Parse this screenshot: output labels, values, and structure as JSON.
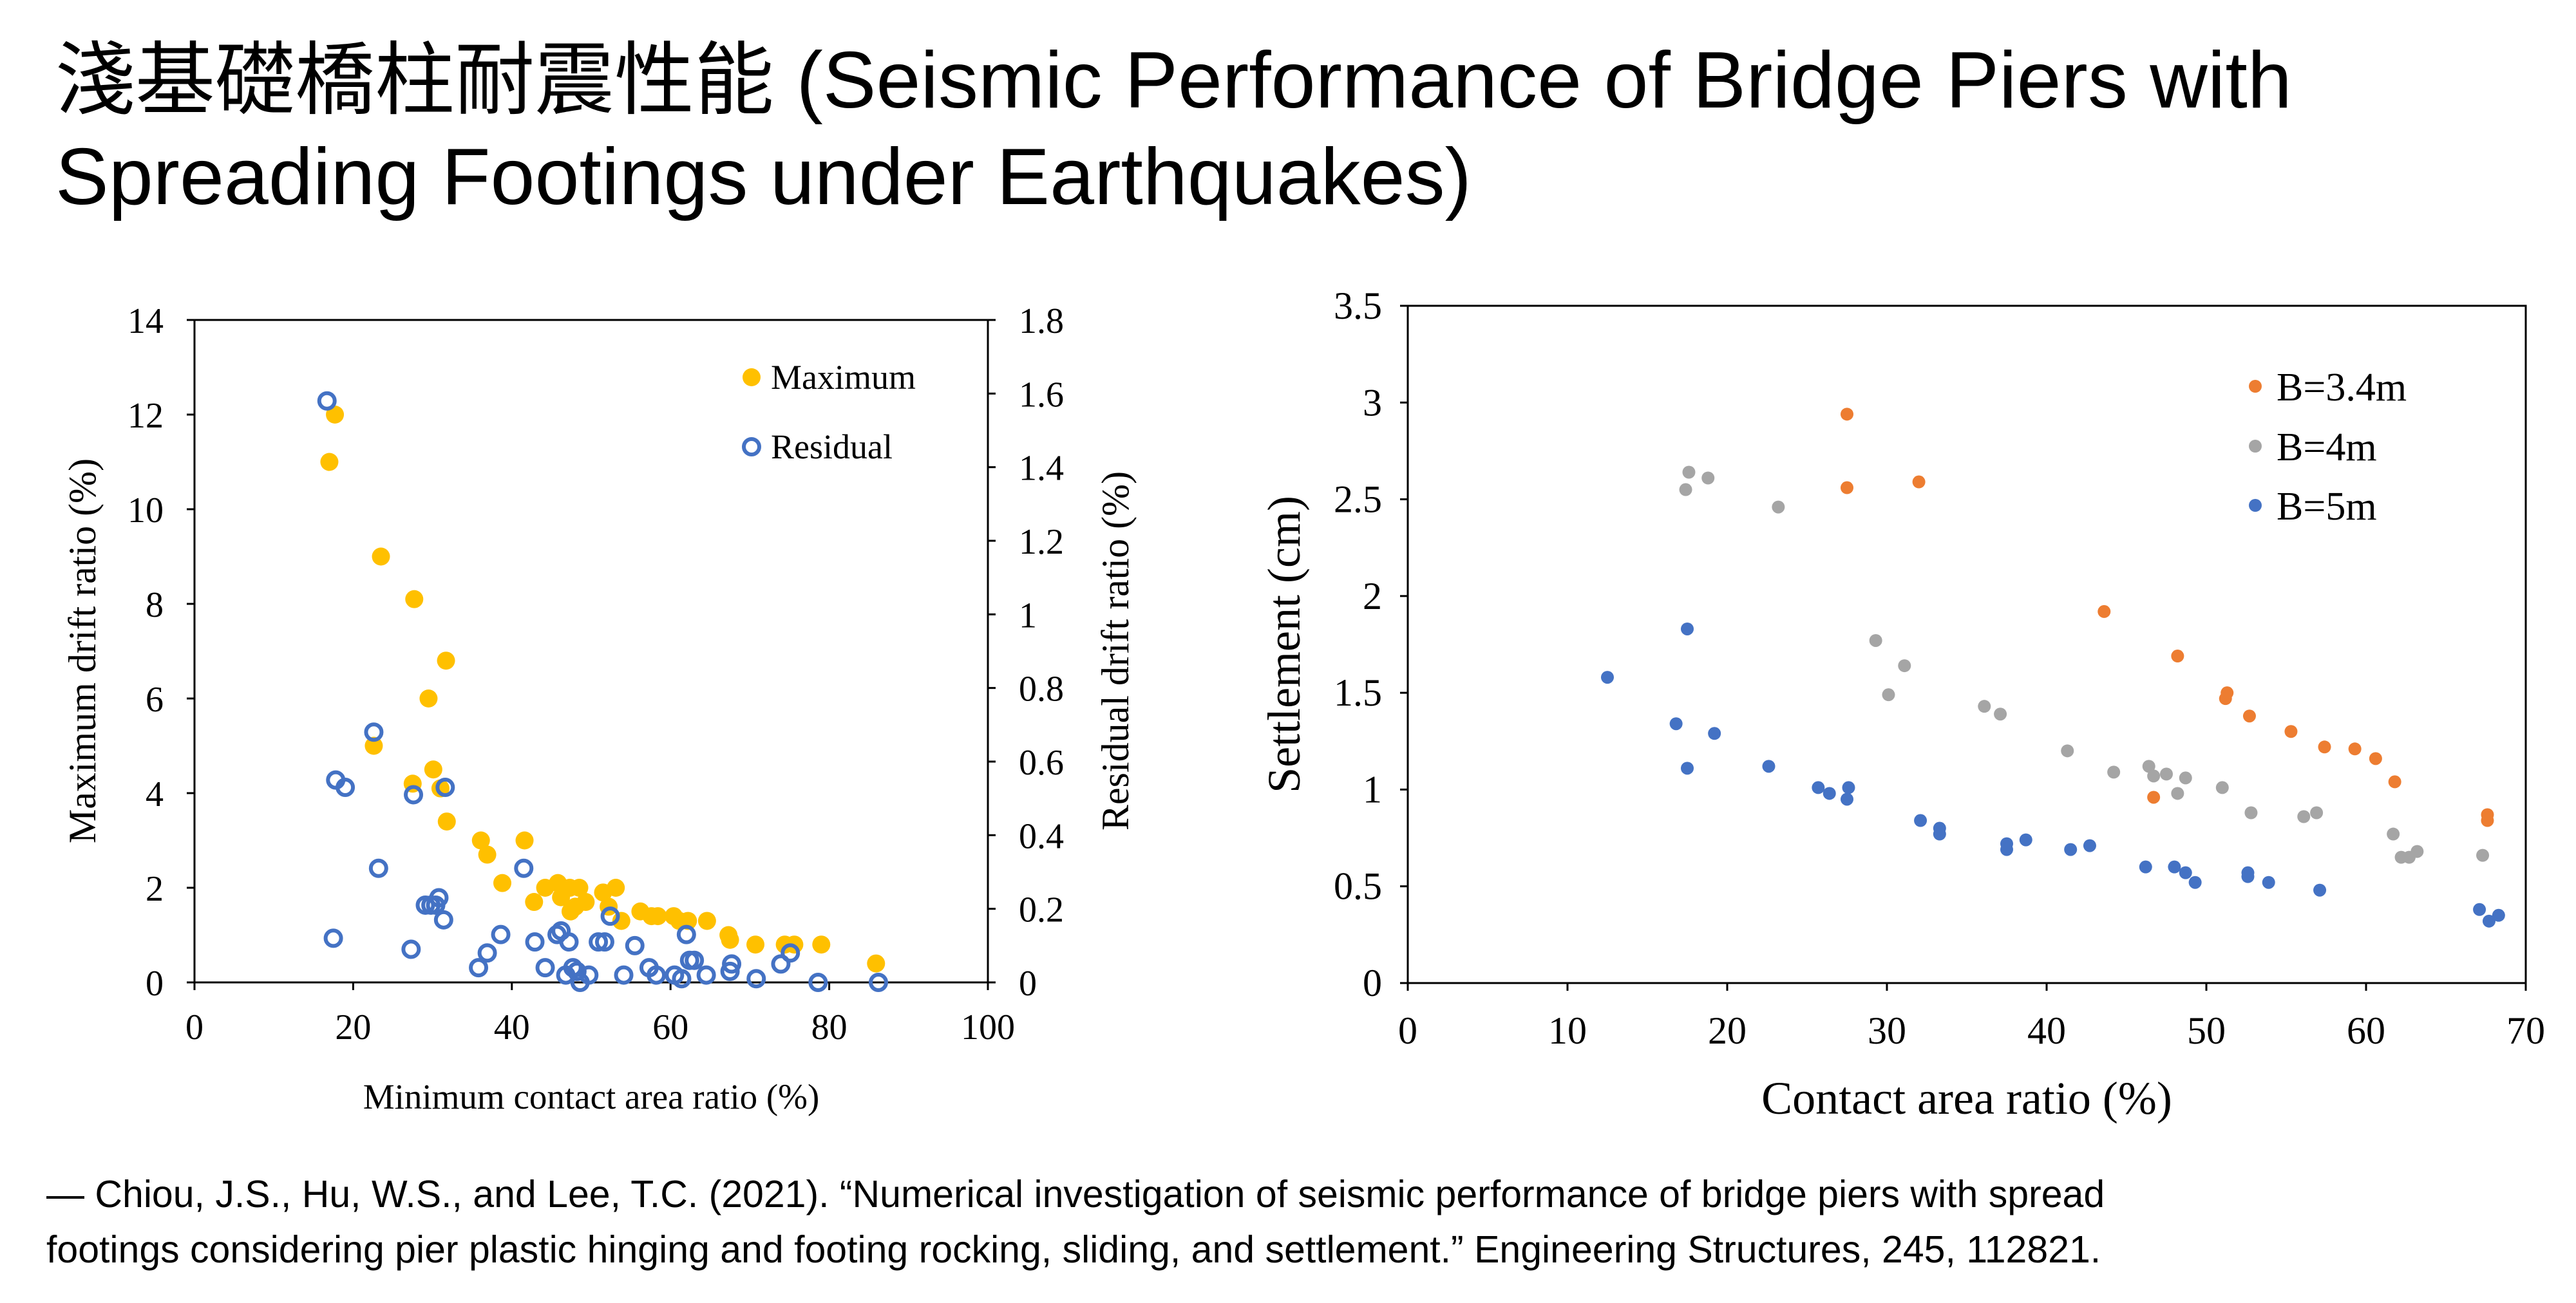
{
  "title": {
    "line1": "淺基礎橋柱耐震性能 (Seismic Performance of Bridge Piers with",
    "line2": "Spreading Footings under Earthquakes)"
  },
  "citation": {
    "line1": "— Chiou, J.S., Hu, W.S., and Lee, T.C. (2021). “Numerical investigation of seismic performance of bridge piers with spread",
    "line2": "footings considering pier plastic hinging and footing rocking, sliding, and settlement.” Engineering Structures, 245, 112821."
  },
  "colors": {
    "maximum": "#FFC000",
    "residual": "#4472C4",
    "b34": "#ED7D31",
    "b4": "#A5A5A5",
    "b5": "#4472C4"
  },
  "chart_data": [
    {
      "type": "scatter",
      "xlabel": "Minimum contact area ratio (%)",
      "ylabel": "Maximum drift ratio (%)",
      "y2label": "Residual drift ratio (%)",
      "xlim": [
        0,
        100
      ],
      "ylim": [
        0,
        14
      ],
      "y2lim": [
        0,
        1.8
      ],
      "xticks": [
        "0",
        "20",
        "40",
        "60",
        "80",
        "100"
      ],
      "yticks": [
        "0",
        "2",
        "4",
        "6",
        "8",
        "10",
        "12",
        "14"
      ],
      "y2ticks": [
        "0",
        "0.2",
        "0.4",
        "0.6",
        "0.8",
        "1",
        "1.2",
        "1.4",
        "1.6",
        "1.8"
      ],
      "legend_position": "top-right",
      "series": [
        {
          "name": "Maximum",
          "axis": "left",
          "marker": "filled-circle",
          "points": [
            [
              17.0,
              11.0
            ],
            [
              17.7,
              12.0
            ],
            [
              22.6,
              5.0
            ],
            [
              23.5,
              9.0
            ],
            [
              27.5,
              4.2
            ],
            [
              27.7,
              8.1
            ],
            [
              29.5,
              6.0
            ],
            [
              30.1,
              4.5
            ],
            [
              31.0,
              4.1
            ],
            [
              31.7,
              6.8
            ],
            [
              31.8,
              3.4
            ],
            [
              36.1,
              3.0
            ],
            [
              36.9,
              2.7
            ],
            [
              38.8,
              2.1
            ],
            [
              41.6,
              3.0
            ],
            [
              42.8,
              1.7
            ],
            [
              44.2,
              2.0
            ],
            [
              45.8,
              2.1
            ],
            [
              46.2,
              1.8
            ],
            [
              47.3,
              2.0
            ],
            [
              47.4,
              1.5
            ],
            [
              48.0,
              1.6
            ],
            [
              48.5,
              2.0
            ],
            [
              49.3,
              1.7
            ],
            [
              51.5,
              1.9
            ],
            [
              52.2,
              1.6
            ],
            [
              53.1,
              2.0
            ],
            [
              53.8,
              1.3
            ],
            [
              56.2,
              1.5
            ],
            [
              57.6,
              1.4
            ],
            [
              58.4,
              1.4
            ],
            [
              60.4,
              1.4
            ],
            [
              61.1,
              1.3
            ],
            [
              62.2,
              1.3
            ],
            [
              64.6,
              1.3
            ],
            [
              67.3,
              1.0
            ],
            [
              67.5,
              0.9
            ],
            [
              70.7,
              0.8
            ],
            [
              74.4,
              0.8
            ],
            [
              75.6,
              0.8
            ],
            [
              79.0,
              0.8
            ],
            [
              85.9,
              0.4
            ]
          ]
        },
        {
          "name": "Residual",
          "axis": "right",
          "marker": "open-circle",
          "points": [
            [
              16.7,
              1.58
            ],
            [
              17.5,
              0.12
            ],
            [
              17.8,
              0.55
            ],
            [
              19.0,
              0.53
            ],
            [
              22.6,
              0.68
            ],
            [
              23.2,
              0.31
            ],
            [
              27.3,
              0.09
            ],
            [
              27.6,
              0.51
            ],
            [
              29.1,
              0.21
            ],
            [
              29.8,
              0.21
            ],
            [
              30.4,
              0.21
            ],
            [
              30.8,
              0.23
            ],
            [
              31.4,
              0.17
            ],
            [
              31.6,
              0.53
            ],
            [
              35.8,
              0.04
            ],
            [
              36.9,
              0.08
            ],
            [
              38.6,
              0.13
            ],
            [
              41.5,
              0.31
            ],
            [
              42.9,
              0.11
            ],
            [
              44.2,
              0.04
            ],
            [
              45.7,
              0.13
            ],
            [
              46.2,
              0.14
            ],
            [
              46.8,
              0.02
            ],
            [
              47.2,
              0.11
            ],
            [
              47.7,
              0.04
            ],
            [
              48.2,
              0.03
            ],
            [
              48.6,
              0.0
            ],
            [
              49.7,
              0.02
            ],
            [
              50.9,
              0.11
            ],
            [
              51.7,
              0.11
            ],
            [
              52.4,
              0.18
            ],
            [
              54.1,
              0.02
            ],
            [
              55.5,
              0.1
            ],
            [
              57.3,
              0.04
            ],
            [
              58.2,
              0.02
            ],
            [
              60.5,
              0.02
            ],
            [
              61.4,
              0.01
            ],
            [
              62.0,
              0.13
            ],
            [
              62.4,
              0.06
            ],
            [
              63.0,
              0.06
            ],
            [
              64.5,
              0.02
            ],
            [
              67.5,
              0.03
            ],
            [
              67.7,
              0.05
            ],
            [
              70.8,
              0.01
            ],
            [
              73.9,
              0.05
            ],
            [
              75.1,
              0.08
            ],
            [
              78.6,
              0.0
            ],
            [
              86.2,
              0.0
            ]
          ]
        }
      ]
    },
    {
      "type": "scatter",
      "xlabel": "Contact area ratio (%)",
      "ylabel": "Settlement (cm)",
      "xlim": [
        0,
        70
      ],
      "ylim": [
        0,
        3.5
      ],
      "xticks": [
        "0",
        "10",
        "20",
        "30",
        "40",
        "50",
        "60",
        "70"
      ],
      "yticks": [
        "0",
        "0.5",
        "1",
        "1.5",
        "2",
        "2.5",
        "3",
        "3.5"
      ],
      "legend_position": "top-right",
      "series": [
        {
          "name": "B=3.4m",
          "marker": "filled-dot",
          "points": [
            [
              27.5,
              2.94
            ],
            [
              27.5,
              2.56
            ],
            [
              32.0,
              2.59
            ],
            [
              43.6,
              1.92
            ],
            [
              46.7,
              0.96
            ],
            [
              48.2,
              1.69
            ],
            [
              51.2,
              1.47
            ],
            [
              51.3,
              1.5
            ],
            [
              52.7,
              1.38
            ],
            [
              55.3,
              1.3
            ],
            [
              57.4,
              1.22
            ],
            [
              59.3,
              1.21
            ],
            [
              60.6,
              1.16
            ],
            [
              61.8,
              1.04
            ],
            [
              67.6,
              0.87
            ],
            [
              67.6,
              0.84
            ]
          ]
        },
        {
          "name": "B=4m",
          "marker": "filled-dot",
          "points": [
            [
              17.4,
              2.55
            ],
            [
              17.6,
              2.64
            ],
            [
              18.8,
              2.61
            ],
            [
              23.2,
              2.46
            ],
            [
              29.3,
              1.77
            ],
            [
              30.1,
              1.49
            ],
            [
              31.1,
              1.64
            ],
            [
              36.1,
              1.43
            ],
            [
              37.1,
              1.39
            ],
            [
              41.3,
              1.2
            ],
            [
              44.2,
              1.09
            ],
            [
              46.4,
              1.12
            ],
            [
              46.7,
              1.07
            ],
            [
              47.5,
              1.08
            ],
            [
              48.2,
              0.98
            ],
            [
              48.7,
              1.06
            ],
            [
              51.0,
              1.01
            ],
            [
              52.8,
              0.88
            ],
            [
              56.1,
              0.86
            ],
            [
              56.9,
              0.88
            ],
            [
              61.7,
              0.77
            ],
            [
              62.2,
              0.65
            ],
            [
              62.7,
              0.65
            ],
            [
              63.2,
              0.68
            ],
            [
              67.3,
              0.66
            ]
          ]
        },
        {
          "name": "B=5m",
          "marker": "filled-dot",
          "points": [
            [
              12.5,
              1.58
            ],
            [
              16.8,
              1.34
            ],
            [
              17.5,
              1.83
            ],
            [
              17.5,
              1.11
            ],
            [
              19.2,
              1.29
            ],
            [
              22.6,
              1.12
            ],
            [
              25.7,
              1.01
            ],
            [
              26.4,
              0.98
            ],
            [
              27.5,
              0.95
            ],
            [
              27.6,
              1.01
            ],
            [
              32.1,
              0.84
            ],
            [
              33.3,
              0.8
            ],
            [
              33.3,
              0.77
            ],
            [
              37.5,
              0.72
            ],
            [
              37.5,
              0.69
            ],
            [
              38.7,
              0.74
            ],
            [
              41.5,
              0.69
            ],
            [
              42.7,
              0.71
            ],
            [
              46.2,
              0.6
            ],
            [
              48.0,
              0.6
            ],
            [
              48.7,
              0.57
            ],
            [
              49.3,
              0.52
            ],
            [
              52.6,
              0.57
            ],
            [
              52.6,
              0.55
            ],
            [
              53.9,
              0.52
            ],
            [
              57.1,
              0.48
            ],
            [
              67.1,
              0.38
            ],
            [
              67.7,
              0.32
            ],
            [
              68.3,
              0.35
            ]
          ]
        }
      ]
    }
  ]
}
